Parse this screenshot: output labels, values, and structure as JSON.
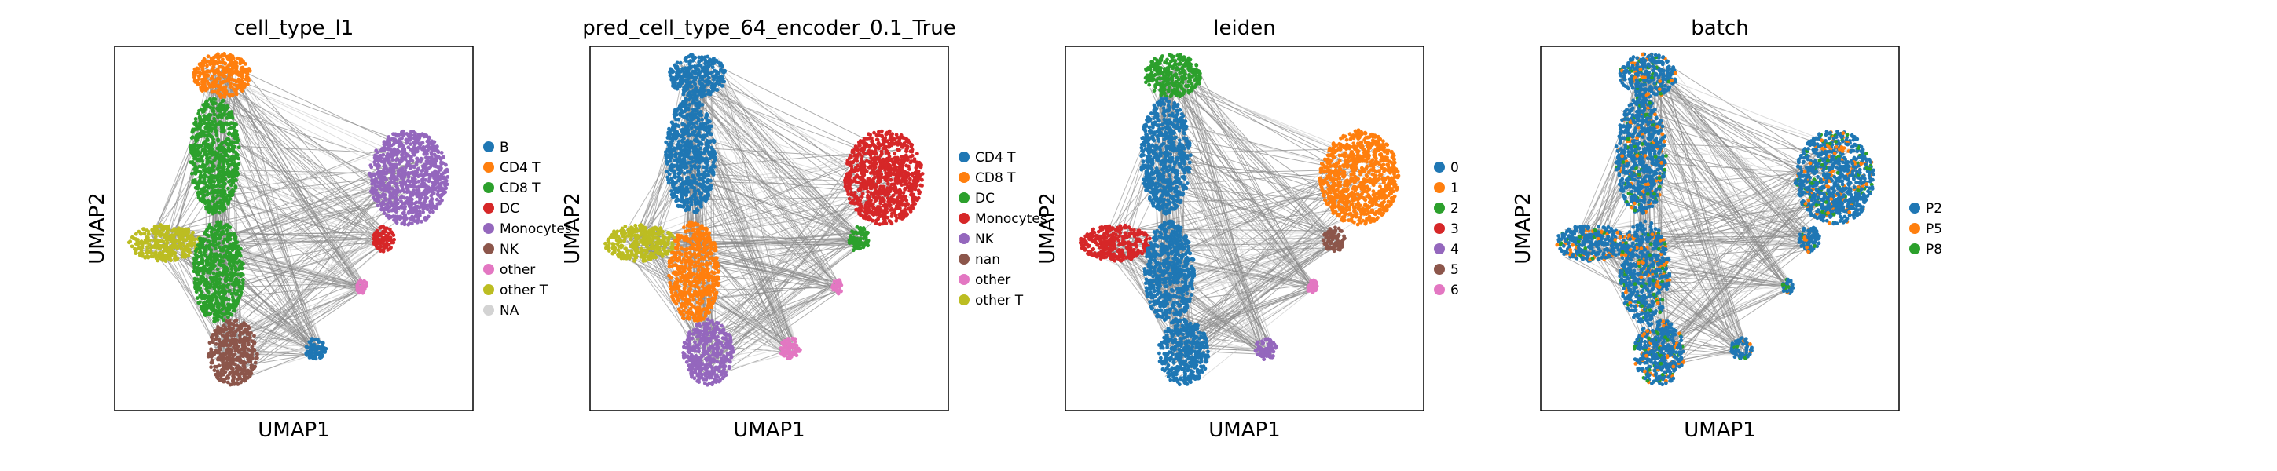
{
  "chart_data": [
    {
      "type": "scatter",
      "title": "cell_type_l1",
      "xlabel": "UMAP1",
      "ylabel": "UMAP2",
      "grid": false,
      "legend_position": "right",
      "legend": [
        {
          "label": "B",
          "color": "#1f77b4"
        },
        {
          "label": "CD4 T",
          "color": "#ff7f0e"
        },
        {
          "label": "CD8 T",
          "color": "#2ca02c"
        },
        {
          "label": "DC",
          "color": "#d62728"
        },
        {
          "label": "Monocytes",
          "color": "#9467bd"
        },
        {
          "label": "NK",
          "color": "#8c564b"
        },
        {
          "label": "other",
          "color": "#e377c2"
        },
        {
          "label": "other T",
          "color": "#bcbd22"
        },
        {
          "label": "NA",
          "color": "#d3d3d3"
        }
      ]
    },
    {
      "type": "scatter",
      "title": "pred_cell_type_64_encoder_0.1_True",
      "xlabel": "UMAP1",
      "ylabel": "UMAP2",
      "grid": false,
      "legend_position": "right",
      "legend": [
        {
          "label": "CD4 T",
          "color": "#1f77b4"
        },
        {
          "label": "CD8 T",
          "color": "#ff7f0e"
        },
        {
          "label": "DC",
          "color": "#2ca02c"
        },
        {
          "label": "Monocytes",
          "color": "#d62728"
        },
        {
          "label": "NK",
          "color": "#9467bd"
        },
        {
          "label": "nan",
          "color": "#8c564b"
        },
        {
          "label": "other",
          "color": "#e377c2"
        },
        {
          "label": "other T",
          "color": "#bcbd22"
        }
      ]
    },
    {
      "type": "scatter",
      "title": "leiden",
      "xlabel": "UMAP1",
      "ylabel": "UMAP2",
      "grid": false,
      "legend_position": "right",
      "legend": [
        {
          "label": "0",
          "color": "#1f77b4"
        },
        {
          "label": "1",
          "color": "#ff7f0e"
        },
        {
          "label": "2",
          "color": "#2ca02c"
        },
        {
          "label": "3",
          "color": "#d62728"
        },
        {
          "label": "4",
          "color": "#9467bd"
        },
        {
          "label": "5",
          "color": "#8c564b"
        },
        {
          "label": "6",
          "color": "#e377c2"
        }
      ]
    },
    {
      "type": "scatter",
      "title": "batch",
      "xlabel": "UMAP1",
      "ylabel": "UMAP2",
      "grid": false,
      "legend_position": "right",
      "legend": [
        {
          "label": "P2",
          "color": "#1f77b4"
        },
        {
          "label": "P5",
          "color": "#ff7f0e"
        },
        {
          "label": "P8",
          "color": "#2ca02c"
        }
      ]
    }
  ]
}
